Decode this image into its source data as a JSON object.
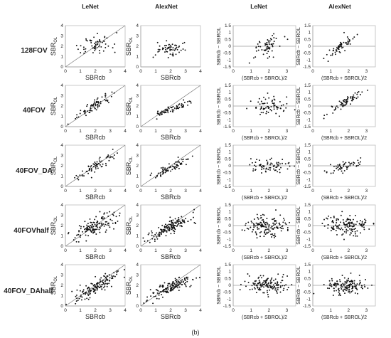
{
  "figure": {
    "caption": "(b)",
    "column_headers": [
      "LeNet",
      "AlexNet",
      "LeNet",
      "AlexNet"
    ],
    "row_labels": [
      "128FOV",
      "40FOV",
      "40FOV_DA",
      "40FOVhalf",
      "40FOV_DAhalf"
    ]
  },
  "axis_text": {
    "scatter_xlabel": "SBRcb",
    "scatter_ylabel_main": "SBR",
    "scatter_ylabel_sub": "OL",
    "ba_xlabel": "(SBRcb + SBROL)/2",
    "ba_ylabel": "SBRcb − SBROL",
    "scatter_xticks": [
      "0",
      "1",
      "2",
      "3",
      "4"
    ],
    "scatter_yticks": [
      "0",
      "1",
      "2",
      "3",
      "4"
    ],
    "ba_xticks": [
      "0",
      "1",
      "2",
      "3"
    ],
    "ba_yticks": [
      "-1.5",
      "-1",
      "-0.5",
      "0",
      "0.5",
      "1",
      "1.5"
    ]
  },
  "chart_data": [
    {
      "panel": "128FOV LeNet SBRcb vs SBROL",
      "type": "scatter",
      "xlabel": "SBRcb",
      "ylabel": "SBROL",
      "xlim": [
        0,
        4
      ],
      "ylim": [
        0,
        4
      ],
      "identity_line": true,
      "x_center": 2.0,
      "x_spread": 0.55,
      "slope": 0.25,
      "intercept": 1.5,
      "noise": 0.45,
      "n": 60
    },
    {
      "panel": "128FOV AlexNet SBRcb vs SBROL",
      "type": "scatter",
      "xlabel": "SBRcb",
      "ylabel": "SBROL",
      "xlim": [
        0,
        4
      ],
      "ylim": [
        0,
        4
      ],
      "identity_line": false,
      "x_center": 1.9,
      "x_spread": 0.6,
      "slope": 0.1,
      "intercept": 1.55,
      "noise": 0.3,
      "n": 60
    },
    {
      "panel": "128FOV LeNet Bland-Altman",
      "type": "scatter",
      "xlabel": "(SBRcb + SBROL)/2",
      "ylabel": "SBRcb − SBROL",
      "xlim": [
        0,
        3.5
      ],
      "ylim": [
        -1.5,
        1.5
      ],
      "x_center": 1.9,
      "x_spread": 0.45,
      "slope": 0.6,
      "intercept": -1.1,
      "noise": 0.35,
      "n": 60
    },
    {
      "panel": "128FOV AlexNet Bland-Altman",
      "type": "scatter",
      "xlabel": "(SBRcb + SBROL)/2",
      "ylabel": "SBRcb − SBROL",
      "xlim": [
        0,
        3.5
      ],
      "ylim": [
        -1.5,
        1.5
      ],
      "x_center": 1.7,
      "x_spread": 0.45,
      "slope": 0.9,
      "intercept": -1.4,
      "noise": 0.25,
      "n": 60
    },
    {
      "panel": "40FOV LeNet SBRcb vs SBROL",
      "type": "scatter",
      "xlabel": "SBRcb",
      "ylabel": "SBROL",
      "xlim": [
        0,
        4
      ],
      "ylim": [
        0,
        4
      ],
      "identity_line": true,
      "x_center": 2.0,
      "x_spread": 0.6,
      "slope": 0.85,
      "intercept": 0.3,
      "noise": 0.3,
      "n": 70
    },
    {
      "panel": "40FOV AlexNet SBRcb vs SBROL",
      "type": "scatter",
      "xlabel": "SBRcb",
      "ylabel": "SBROL",
      "xlim": [
        0,
        4
      ],
      "ylim": [
        0,
        4
      ],
      "identity_line": true,
      "x_center": 2.0,
      "x_spread": 0.6,
      "slope": 0.5,
      "intercept": 0.65,
      "noise": 0.2,
      "n": 70
    },
    {
      "panel": "40FOV LeNet Bland-Altman",
      "type": "scatter",
      "xlabel": "(SBRcb + SBROL)/2",
      "ylabel": "SBRcb − SBROL",
      "xlim": [
        0,
        3.5
      ],
      "ylim": [
        -1.5,
        1.5
      ],
      "x_center": 2.0,
      "x_spread": 0.55,
      "slope": 0.0,
      "intercept": 0.0,
      "noise": 0.3,
      "n": 70
    },
    {
      "panel": "40FOV AlexNet Bland-Altman",
      "type": "scatter",
      "xlabel": "(SBRcb + SBROL)/2",
      "ylabel": "SBRcb − SBROL",
      "xlim": [
        0,
        3.5
      ],
      "ylim": [
        -1.5,
        1.5
      ],
      "x_center": 1.8,
      "x_spread": 0.5,
      "slope": 0.75,
      "intercept": -1.1,
      "noise": 0.15,
      "n": 70
    },
    {
      "panel": "40FOV_DA LeNet SBRcb vs SBROL",
      "type": "scatter",
      "xlabel": "SBRcb",
      "ylabel": "SBROL",
      "xlim": [
        0,
        4
      ],
      "ylim": [
        0,
        4
      ],
      "identity_line": true,
      "x_center": 2.0,
      "x_spread": 0.6,
      "slope": 0.8,
      "intercept": 0.35,
      "noise": 0.3,
      "n": 70
    },
    {
      "panel": "40FOV_DA AlexNet SBRcb vs SBROL",
      "type": "scatter",
      "xlabel": "SBRcb",
      "ylabel": "SBROL",
      "xlim": [
        0,
        4
      ],
      "ylim": [
        0,
        4
      ],
      "identity_line": true,
      "x_center": 2.0,
      "x_spread": 0.6,
      "slope": 0.7,
      "intercept": 0.4,
      "noise": 0.2,
      "n": 70
    },
    {
      "panel": "40FOV_DA LeNet Bland-Altman",
      "type": "scatter",
      "xlabel": "(SBRcb + SBROL)/2",
      "ylabel": "SBRcb − SBROL",
      "xlim": [
        0,
        3.5
      ],
      "ylim": [
        -1.5,
        1.5
      ],
      "x_center": 2.0,
      "x_spread": 0.55,
      "slope": 0.0,
      "intercept": -0.05,
      "noise": 0.25,
      "n": 70
    },
    {
      "panel": "40FOV_DA AlexNet Bland-Altman",
      "type": "scatter",
      "xlabel": "(SBRcb + SBROL)/2",
      "ylabel": "SBRcb − SBROL",
      "xlim": [
        0,
        3.5
      ],
      "ylim": [
        -1.5,
        1.5
      ],
      "x_center": 1.8,
      "x_spread": 0.5,
      "slope": 0.4,
      "intercept": -0.75,
      "noise": 0.15,
      "n": 55
    },
    {
      "panel": "40FOVhalf LeNet SBRcb vs SBROL",
      "type": "scatter",
      "xlabel": "SBRcb",
      "ylabel": "SBROL",
      "xlim": [
        0,
        4
      ],
      "ylim": [
        0,
        4
      ],
      "identity_line": true,
      "x_center": 2.0,
      "x_spread": 0.75,
      "slope": 0.55,
      "intercept": 0.8,
      "noise": 0.45,
      "n": 140
    },
    {
      "panel": "40FOVhalf AlexNet SBRcb vs SBROL",
      "type": "scatter",
      "xlabel": "SBRcb",
      "ylabel": "SBROL",
      "xlim": [
        0,
        4
      ],
      "ylim": [
        0,
        4
      ],
      "identity_line": true,
      "x_center": 2.0,
      "x_spread": 0.75,
      "slope": 0.65,
      "intercept": 0.55,
      "noise": 0.35,
      "n": 140
    },
    {
      "panel": "40FOVhalf LeNet Bland-Altman",
      "type": "scatter",
      "xlabel": "(SBRcb + SBROL)/2",
      "ylabel": "SBRcb − SBROL",
      "xlim": [
        0,
        3.5
      ],
      "ylim": [
        -1.5,
        1.5
      ],
      "x_center": 1.9,
      "x_spread": 0.6,
      "slope": 0.0,
      "intercept": 0.0,
      "noise": 0.38,
      "n": 140
    },
    {
      "panel": "40FOVhalf AlexNet Bland-Altman",
      "type": "scatter",
      "xlabel": "(SBRcb + SBROL)/2",
      "ylabel": "SBRcb − SBROL",
      "xlim": [
        0,
        3.5
      ],
      "ylim": [
        -1.5,
        1.5
      ],
      "x_center": 1.9,
      "x_spread": 0.6,
      "slope": 0.0,
      "intercept": 0.0,
      "noise": 0.35,
      "n": 140
    },
    {
      "panel": "40FOV_DAhalf LeNet SBRcb vs SBROL",
      "type": "scatter",
      "xlabel": "SBRcb",
      "ylabel": "SBROL",
      "xlim": [
        0,
        4
      ],
      "ylim": [
        0,
        4
      ],
      "identity_line": true,
      "x_center": 2.0,
      "x_spread": 0.75,
      "slope": 0.7,
      "intercept": 0.5,
      "noise": 0.4,
      "n": 140
    },
    {
      "panel": "40FOV_DAhalf AlexNet SBRcb vs SBROL",
      "type": "scatter",
      "xlabel": "SBRcb",
      "ylabel": "SBROL",
      "xlim": [
        0,
        4
      ],
      "ylim": [
        0,
        4
      ],
      "identity_line": true,
      "x_center": 2.0,
      "x_spread": 0.75,
      "slope": 0.65,
      "intercept": 0.5,
      "noise": 0.35,
      "n": 140
    },
    {
      "panel": "40FOV_DAhalf LeNet Bland-Altman",
      "type": "scatter",
      "xlabel": "(SBRcb + SBROL)/2",
      "ylabel": "SBRcb − SBROL",
      "xlim": [
        0,
        3.5
      ],
      "ylim": [
        -1.5,
        1.5
      ],
      "x_center": 1.9,
      "x_spread": 0.6,
      "slope": 0.0,
      "intercept": 0.0,
      "noise": 0.3,
      "n": 140
    },
    {
      "panel": "40FOV_DAhalf AlexNet Bland-Altman",
      "type": "scatter",
      "xlabel": "(SBRcb + SBROL)/2",
      "ylabel": "SBRcb − SBROL",
      "xlim": [
        0,
        3.5
      ],
      "ylim": [
        -1.5,
        1.5
      ],
      "x_center": 1.9,
      "x_spread": 0.6,
      "slope": 0.0,
      "intercept": 0.0,
      "noise": 0.33,
      "n": 140
    }
  ]
}
